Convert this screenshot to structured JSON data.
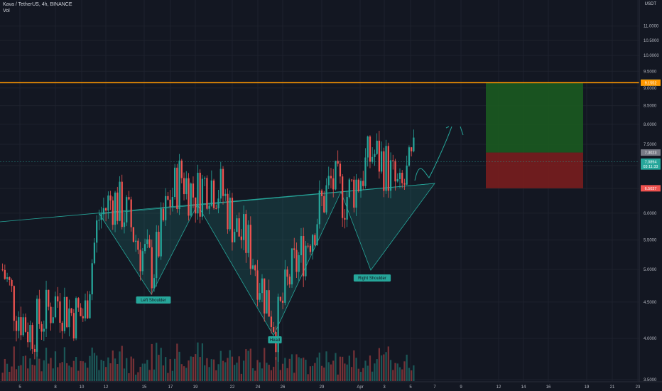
{
  "header": {
    "symbol_line": "Kava / TetherUS, 4h, BINANCE",
    "volume_label": "Vol",
    "currency": "USDT"
  },
  "colors": {
    "background": "#131722",
    "up": "#26a69a",
    "down": "#ef5350",
    "resistance": "#ff9800",
    "pattern_fill": "#26a69a",
    "target_zone": "#1b5e20",
    "stop_zone": "#7f1d1d"
  },
  "chart_data": {
    "type": "candlestick",
    "title": "",
    "price_axis": {
      "scale": "log",
      "ylim": [
        3.3,
        11.2
      ],
      "tick_labels": [
        "11.0000",
        "10.5000",
        "10.0000",
        "9.5000",
        "9.0000",
        "8.5000",
        "8.0000",
        "7.5000",
        "7.0000",
        "6.5000",
        "6.0000",
        "5.5000",
        "5.0000",
        "4.5000",
        "4.0000",
        "3.5000"
      ],
      "tick_values": [
        11.0,
        10.5,
        10.0,
        9.5,
        9.0,
        8.5,
        8.0,
        7.5,
        7.0,
        6.5,
        6.0,
        5.5,
        5.0,
        4.5,
        4.0,
        3.5
      ]
    },
    "time_axis": {
      "tick_labels": [
        "5",
        "8",
        "10",
        "12",
        "15",
        "17",
        "19",
        "22",
        "24",
        "26",
        "29",
        "Apr",
        "3",
        "5",
        "7",
        "9",
        "12",
        "14",
        "16",
        "19",
        "21",
        "23"
      ]
    },
    "price_labels": [
      {
        "text": "9.1552",
        "value": 9.1552,
        "color": "#26a69a"
      },
      {
        "text": "9.1552",
        "value": 9.1552,
        "color": "#ff9800"
      },
      {
        "text": "7.3023",
        "value": 7.3023,
        "color": "#787b86"
      },
      {
        "text": "7.0894",
        "value": 7.0894,
        "color": "#26a69a"
      },
      {
        "text": "03:11:33",
        "value": 6.98,
        "color": "#26a69a"
      },
      {
        "text": "6.5037",
        "value": 6.5037,
        "color": "#ef5350"
      }
    ],
    "resistance_level": 9.1552,
    "position_zone": {
      "target": 9.1552,
      "entry": 7.3023,
      "stop": 6.5037
    },
    "annotations": [
      "Left Shoulder",
      "Head",
      "Right Shoulder"
    ],
    "ohlc_anchors": [
      5.0,
      4.4,
      4.1,
      4.3,
      4.55,
      4.35,
      4.3,
      5.9,
      6.3,
      6.0,
      5.35,
      5.0,
      6.1,
      6.8,
      6.35,
      6.7,
      6.45,
      5.7,
      5.4,
      4.7,
      4.15,
      4.9,
      5.35,
      6.0,
      6.65,
      6.3,
      6.7,
      7.3,
      7.0,
      6.35,
      7.09
    ]
  },
  "labels": {
    "left_shoulder": "Left Shoulder",
    "head": "Head",
    "right_shoulder": "Right Shoulder"
  }
}
